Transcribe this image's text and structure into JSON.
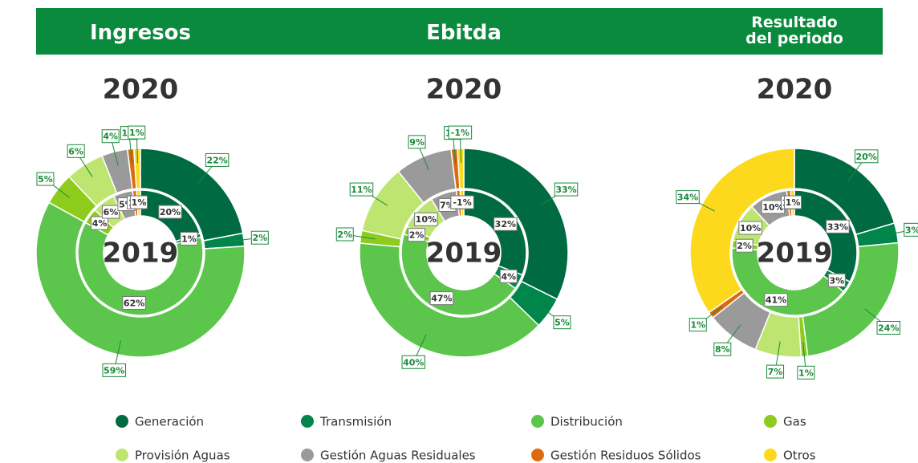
{
  "chart_data": [
    {
      "type": "donut",
      "title": "Ingresos",
      "categories": [
        "Generación",
        "Transmisión",
        "Distribución",
        "Gas",
        "Provisión Aguas",
        "Gestión Aguas Residuales",
        "Gestión Residuos Sólidos",
        "Otros"
      ],
      "colors": [
        "#006b43",
        "#00864a",
        "#5cc64c",
        "#8dcb1c",
        "#bde56f",
        "#9a9a9a",
        "#dc6a10",
        "#fcd91c"
      ],
      "series": [
        {
          "name": "2020",
          "values": [
            22,
            2,
            59,
            5,
            6,
            4,
            1,
            1
          ],
          "value_labels": [
            "22%",
            "2%",
            "59%",
            "5%",
            "6%",
            "4%",
            "1%",
            "1%"
          ]
        },
        {
          "name": "2019",
          "values": [
            20,
            1,
            62,
            4,
            6,
            5,
            1,
            1
          ],
          "value_labels": [
            "20%",
            "1%",
            "62%",
            "4%",
            "6%",
            "5%",
            "1%",
            "1%"
          ]
        }
      ]
    },
    {
      "type": "donut",
      "title": "Ebitda",
      "categories": [
        "Generación",
        "Transmisión",
        "Distribución",
        "Gas",
        "Provisión Aguas",
        "Gestión Aguas Residuales",
        "Gestión Residuos Sólidos",
        "Otros"
      ],
      "colors": [
        "#006b43",
        "#00864a",
        "#5cc64c",
        "#8dcb1c",
        "#bde56f",
        "#9a9a9a",
        "#dc6a10",
        "#fcd91c"
      ],
      "series": [
        {
          "name": "2020",
          "values": [
            33,
            5,
            40,
            2,
            11,
            9,
            1,
            -1
          ],
          "value_labels": [
            "33%",
            "5%",
            "40%",
            "2%",
            "11%",
            "9%",
            "1%",
            "-1%"
          ]
        },
        {
          "name": "2019",
          "values": [
            32,
            4,
            47,
            2,
            10,
            7,
            1,
            -1
          ],
          "value_labels": [
            "32%",
            "4%",
            "47%",
            "2%",
            "10%",
            "7%",
            "1%",
            "-1%"
          ]
        }
      ]
    },
    {
      "type": "donut",
      "title": "Resultado del periodo",
      "categories": [
        "Generación",
        "Transmisión",
        "Distribución",
        "Gas",
        "Provisión Aguas",
        "Gestión Aguas Residuales",
        "Gestión Residuos Sólidos",
        "Otros"
      ],
      "colors": [
        "#006b43",
        "#00864a",
        "#5cc64c",
        "#8dcb1c",
        "#bde56f",
        "#9a9a9a",
        "#dc6a10",
        "#fcd91c"
      ],
      "series": [
        {
          "name": "2020",
          "values": [
            20,
            3,
            24,
            1,
            7,
            8,
            1,
            34
          ],
          "value_labels": [
            "20%",
            "3%",
            "24%",
            "1%",
            "7%",
            "8%",
            "1%",
            "34%"
          ]
        },
        {
          "name": "2019",
          "values": [
            33,
            3,
            41,
            2,
            10,
            10,
            1,
            1
          ],
          "value_labels": [
            "33%",
            "3%",
            "41%",
            "2%",
            "10%",
            "10%",
            "1%",
            "1%"
          ]
        }
      ]
    }
  ]
}
